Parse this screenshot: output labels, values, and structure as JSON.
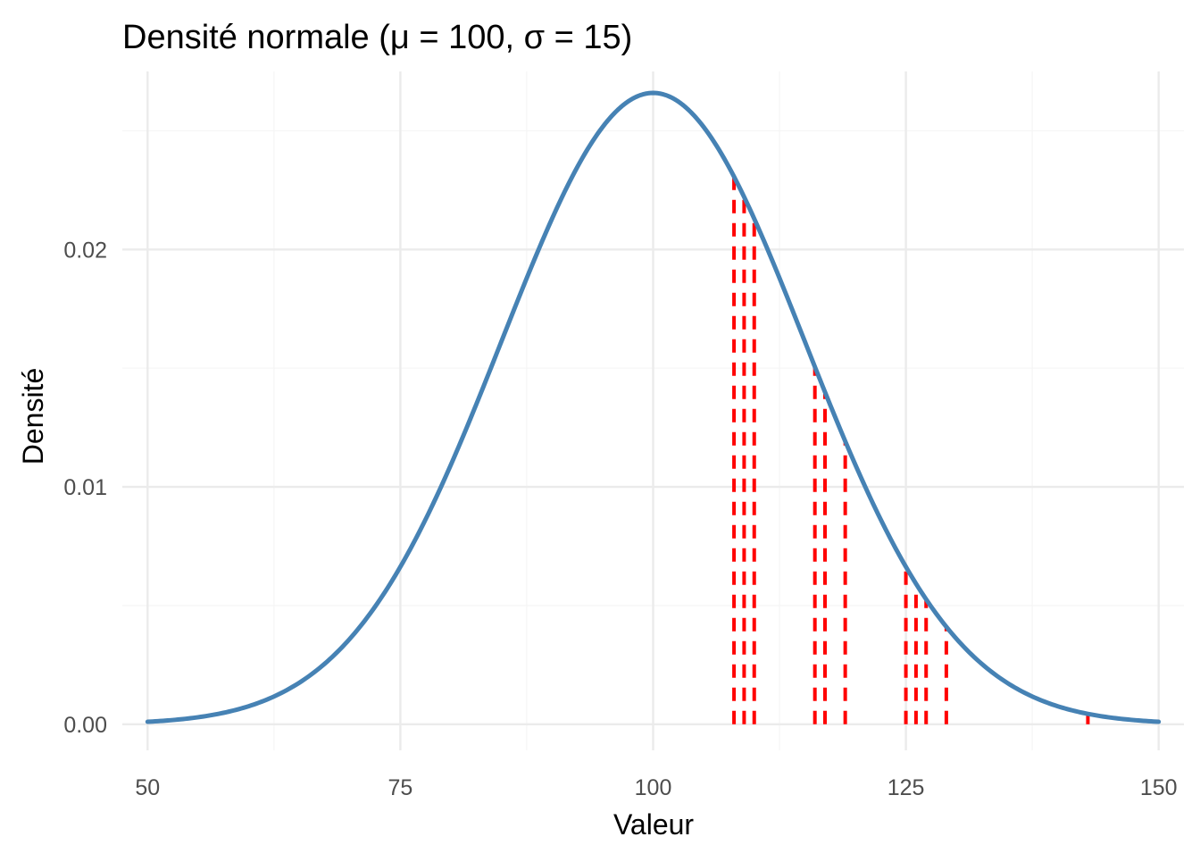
{
  "chart_data": {
    "type": "line",
    "title": "Densité normale (μ = 100, σ = 15)",
    "xlabel": "Valeur",
    "ylabel": "Densité",
    "xlim": [
      47.5,
      152.5
    ],
    "ylim": [
      -0.0011,
      0.0275
    ],
    "x_ticks": [
      50,
      75,
      100,
      125,
      150
    ],
    "x_tick_labels": [
      "50",
      "75",
      "100",
      "125",
      "150"
    ],
    "y_ticks": [
      0.0,
      0.01,
      0.02
    ],
    "y_tick_labels": [
      "0.00",
      "0.01",
      "0.02"
    ],
    "grid": true,
    "legend": "none",
    "colors": {
      "curve": "#4682B4",
      "segments": "#FF0000",
      "grid_major": "#EBEBEB",
      "grid_minor": "#F5F5F5"
    },
    "series": [
      {
        "style": "solid",
        "distribution": "normal",
        "mean": 100,
        "sd": 15,
        "x_range": [
          50,
          150
        ]
      }
    ],
    "segments": {
      "style": "dashed",
      "x": [
        108,
        109,
        110,
        116,
        117,
        119,
        125,
        126,
        127,
        129,
        143
      ]
    }
  }
}
